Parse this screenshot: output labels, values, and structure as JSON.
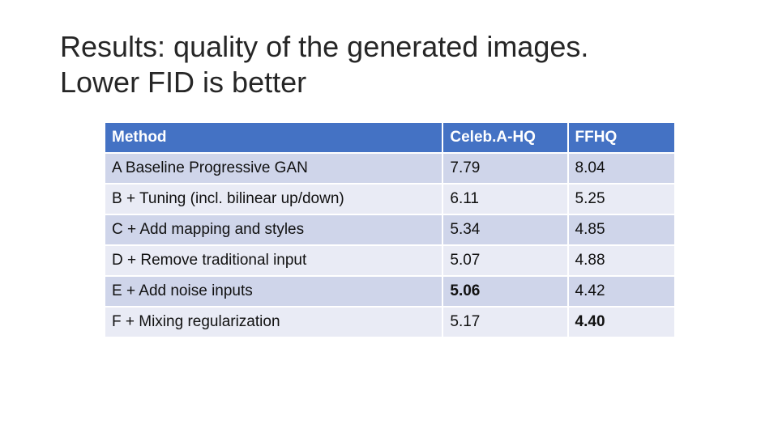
{
  "slide": {
    "title_line1": "Results: quality of the generated images.",
    "title_line2": "Lower FID is better"
  },
  "table": {
    "headers": [
      "Method",
      "Celeb.A-HQ",
      "FFHQ"
    ],
    "rows": [
      {
        "method": "A Baseline Progressive GAN",
        "celeba_hq": "7.79",
        "ffhq": "8.04"
      },
      {
        "method": "B + Tuning (incl. bilinear up/down)",
        "celeba_hq": "6.11",
        "ffhq": "5.25"
      },
      {
        "method": "C + Add mapping and styles",
        "celeba_hq": "5.34",
        "ffhq": "4.85"
      },
      {
        "method": "D + Remove traditional input",
        "celeba_hq": "5.07",
        "ffhq": "4.88"
      },
      {
        "method": "E + Add noise inputs",
        "celeba_hq": "5.06",
        "ffhq": "4.42"
      },
      {
        "method": "F + Mixing regularization",
        "celeba_hq": "5.17",
        "ffhq": "4.40"
      }
    ],
    "best": {
      "celeba_hq_row": 4,
      "ffhq_row": 5
    }
  },
  "colors": {
    "header_bg": "#4472c4",
    "row_dark": "#cfd5ea",
    "row_light": "#e9ebf5"
  }
}
